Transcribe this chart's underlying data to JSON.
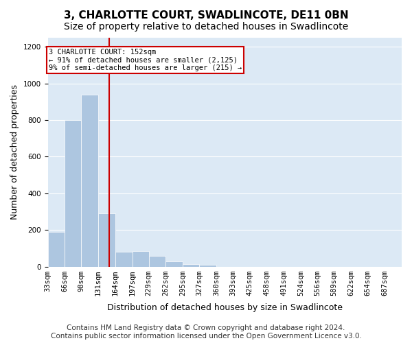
{
  "title": "3, CHARLOTTE COURT, SWADLINCOTE, DE11 0BN",
  "subtitle": "Size of property relative to detached houses in Swadlincote",
  "xlabel": "Distribution of detached houses by size in Swadlincote",
  "ylabel": "Number of detached properties",
  "bin_labels": [
    "33sqm",
    "66sqm",
    "98sqm",
    "131sqm",
    "164sqm",
    "197sqm",
    "229sqm",
    "262sqm",
    "295sqm",
    "327sqm",
    "360sqm",
    "393sqm",
    "425sqm",
    "458sqm",
    "491sqm",
    "524sqm",
    "556sqm",
    "589sqm",
    "622sqm",
    "654sqm",
    "687sqm"
  ],
  "bar_values": [
    190,
    800,
    940,
    290,
    80,
    85,
    60,
    30,
    15,
    10,
    0,
    0,
    0,
    0,
    0,
    0,
    0,
    0,
    0,
    0
  ],
  "bar_color": "#adc6e0",
  "bar_edge_color": "#adc6e0",
  "background_color": "#dce9f5",
  "grid_color": "#ffffff",
  "property_line_x": 152,
  "property_line_label": "3 CHARLOTTE COURT: 152sqm",
  "annotation_line1": "← 91% of detached houses are smaller (2,125)",
  "annotation_line2": "9% of semi-detached houses are larger (215) →",
  "annotation_box_color": "#ffffff",
  "annotation_box_edge": "#cc0000",
  "property_line_color": "#cc0000",
  "ylim": [
    0,
    1250
  ],
  "yticks": [
    0,
    200,
    400,
    600,
    800,
    1000,
    1200
  ],
  "bin_edges": [
    33,
    66,
    98,
    131,
    164,
    197,
    229,
    262,
    295,
    327,
    360,
    393,
    425,
    458,
    491,
    524,
    556,
    589,
    622,
    654,
    687
  ],
  "footer_line1": "Contains HM Land Registry data © Crown copyright and database right 2024.",
  "footer_line2": "Contains public sector information licensed under the Open Government Licence v3.0.",
  "title_fontsize": 11,
  "subtitle_fontsize": 10,
  "xlabel_fontsize": 9,
  "ylabel_fontsize": 9,
  "tick_fontsize": 7.5,
  "footer_fontsize": 7.5
}
